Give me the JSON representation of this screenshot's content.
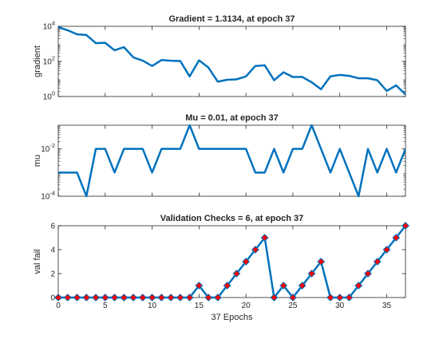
{
  "chart_data": [
    {
      "type": "line",
      "title": "Gradient = 1.3134, at epoch 37",
      "xlabel": "",
      "ylabel": "gradient",
      "yscale": "log",
      "xlim": [
        0,
        37
      ],
      "ylim": [
        1,
        10000
      ],
      "yticks": [
        1,
        100,
        10000
      ],
      "ytick_labels": [
        [
          "10",
          "0"
        ],
        [
          "10",
          "2"
        ],
        [
          "10",
          "4"
        ]
      ],
      "color": "#0072BD",
      "series": [
        {
          "x": [
            0,
            1,
            2,
            3,
            4,
            5,
            6,
            7,
            8,
            9,
            10,
            11,
            12,
            13,
            14,
            15,
            16,
            17,
            18,
            19,
            20,
            21,
            22,
            23,
            24,
            25,
            26,
            27,
            28,
            29,
            30,
            31,
            32,
            33,
            34,
            35,
            36,
            37
          ],
          "y": [
            9000,
            6000,
            3500,
            3200,
            1100,
            1150,
            430,
            650,
            170,
            110,
            55,
            120,
            110,
            105,
            14,
            115,
            45,
            7,
            9,
            9.5,
            14,
            55,
            60,
            8.5,
            24,
            13,
            13,
            6.5,
            2.6,
            14,
            17,
            15,
            11,
            11,
            8.5,
            2.1,
            4.3,
            1.3134
          ]
        }
      ]
    },
    {
      "type": "line",
      "title": "Mu = 0.01, at epoch 37",
      "xlabel": "",
      "ylabel": "mu",
      "yscale": "log",
      "xlim": [
        0,
        37
      ],
      "ylim": [
        0.0001,
        0.1
      ],
      "yticks": [
        0.0001,
        0.01
      ],
      "ytick_labels": [
        [
          "10",
          "-4"
        ],
        [
          "10",
          "-2"
        ]
      ],
      "color": "#0072BD",
      "series": [
        {
          "x": [
            0,
            1,
            2,
            3,
            4,
            5,
            6,
            7,
            8,
            9,
            10,
            11,
            12,
            13,
            14,
            15,
            16,
            17,
            18,
            19,
            20,
            21,
            22,
            23,
            24,
            25,
            26,
            27,
            28,
            29,
            30,
            31,
            32,
            33,
            34,
            35,
            36,
            37
          ],
          "y": [
            0.001,
            0.001,
            0.001,
            0.0001,
            0.01,
            0.01,
            0.001,
            0.01,
            0.01,
            0.01,
            0.001,
            0.01,
            0.01,
            0.01,
            0.1,
            0.01,
            0.01,
            0.01,
            0.01,
            0.01,
            0.01,
            0.001,
            0.001,
            0.01,
            0.001,
            0.01,
            0.01,
            0.1,
            0.01,
            0.001,
            0.01,
            0.001,
            0.0001,
            0.01,
            0.001,
            0.01,
            0.001,
            0.01
          ]
        }
      ]
    },
    {
      "type": "line",
      "title": "Validation Checks = 6, at epoch 37",
      "xlabel": "37 Epochs",
      "ylabel": "val fail",
      "yscale": "linear",
      "xlim": [
        0,
        37
      ],
      "ylim": [
        0,
        6
      ],
      "yticks": [
        0,
        2,
        4,
        6
      ],
      "ytick_labels": [
        [
          "0"
        ],
        [
          "2"
        ],
        [
          "4"
        ],
        [
          "6"
        ]
      ],
      "xticks": [
        0,
        5,
        10,
        15,
        20,
        25,
        30,
        35
      ],
      "xtick_labels": [
        "0",
        "5",
        "10",
        "15",
        "20",
        "25",
        "30",
        "35"
      ],
      "color": "#0072BD",
      "marker": "diamond",
      "marker_face": "#FF0000",
      "series": [
        {
          "x": [
            0,
            1,
            2,
            3,
            4,
            5,
            6,
            7,
            8,
            9,
            10,
            11,
            12,
            13,
            14,
            15,
            16,
            17,
            18,
            19,
            20,
            21,
            22,
            23,
            24,
            25,
            26,
            27,
            28,
            29,
            30,
            31,
            32,
            33,
            34,
            35,
            36,
            37
          ],
          "y": [
            0,
            0,
            0,
            0,
            0,
            0,
            0,
            0,
            0,
            0,
            0,
            0,
            0,
            0,
            0,
            1,
            0,
            0,
            1,
            2,
            3,
            4,
            5,
            0,
            1,
            0,
            1,
            2,
            3,
            0,
            0,
            0,
            1,
            2,
            3,
            4,
            5,
            6
          ]
        }
      ]
    }
  ]
}
